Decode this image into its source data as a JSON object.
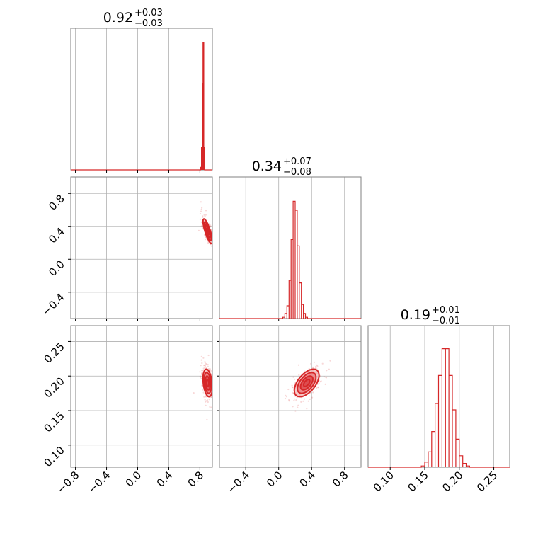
{
  "chart_data": {
    "type": "corner",
    "color": "#d62728",
    "grid": true,
    "parameters": [
      {
        "range": [
          -0.86,
          0.96
        ],
        "median": 0.92,
        "title": "0.92",
        "upper": "+0.03",
        "lower": "−0.03"
      },
      {
        "range": [
          -0.72,
          1.0
        ],
        "median": 0.34,
        "title": "0.34",
        "upper": "+0.07",
        "lower": "−0.08"
      },
      {
        "range": [
          0.068,
          0.273
        ],
        "median": 0.19,
        "title": "0.19",
        "upper": "+0.01",
        "lower": "−0.01"
      }
    ],
    "ticks": {
      "p0": {
        "values": [
          -0.8,
          -0.4,
          0.0,
          0.4,
          0.8
        ],
        "labels": [
          "−0.8",
          "−0.4",
          "0.0",
          "0.4",
          "0.8"
        ]
      },
      "p1": {
        "values": [
          -0.4,
          0.0,
          0.4,
          0.8
        ],
        "labels": [
          "−0.4",
          "0.0",
          "0.4",
          "0.8"
        ]
      },
      "p2": {
        "values": [
          0.1,
          0.15,
          0.2,
          0.25
        ],
        "labels": [
          "0.10",
          "0.15",
          "0.20",
          "0.25"
        ]
      }
    },
    "histograms": [
      {
        "param": 0,
        "edges_start": 0.81,
        "bin_width": 0.01,
        "heights": [
          0.02,
          0.18,
          0.68,
          1.0,
          0.18
        ]
      },
      {
        "param": 1,
        "edges_start": 0.05,
        "bin_width": 0.025,
        "heights": [
          0.01,
          0.04,
          0.1,
          0.3,
          0.62,
          0.92,
          0.85,
          0.57,
          0.28,
          0.11,
          0.04,
          0.01
        ]
      },
      {
        "param": 2,
        "edges_start": 0.145,
        "bin_width": 0.005,
        "heights": [
          0.01,
          0.04,
          0.12,
          0.28,
          0.5,
          0.72,
          0.93,
          0.93,
          0.72,
          0.45,
          0.22,
          0.09,
          0.03,
          0.01
        ]
      }
    ],
    "contours_2d": [
      {
        "x_param": 0,
        "y_param": 1,
        "center": [
          0.9,
          0.34
        ],
        "sd": [
          0.03,
          0.075
        ],
        "rho": -0.8
      },
      {
        "x_param": 0,
        "y_param": 2,
        "center": [
          0.9,
          0.19
        ],
        "sd": [
          0.03,
          0.01
        ],
        "rho": -0.3
      },
      {
        "x_param": 1,
        "y_param": 2,
        "center": [
          0.34,
          0.19
        ],
        "sd": [
          0.075,
          0.01
        ],
        "rho": 0.55
      }
    ]
  }
}
